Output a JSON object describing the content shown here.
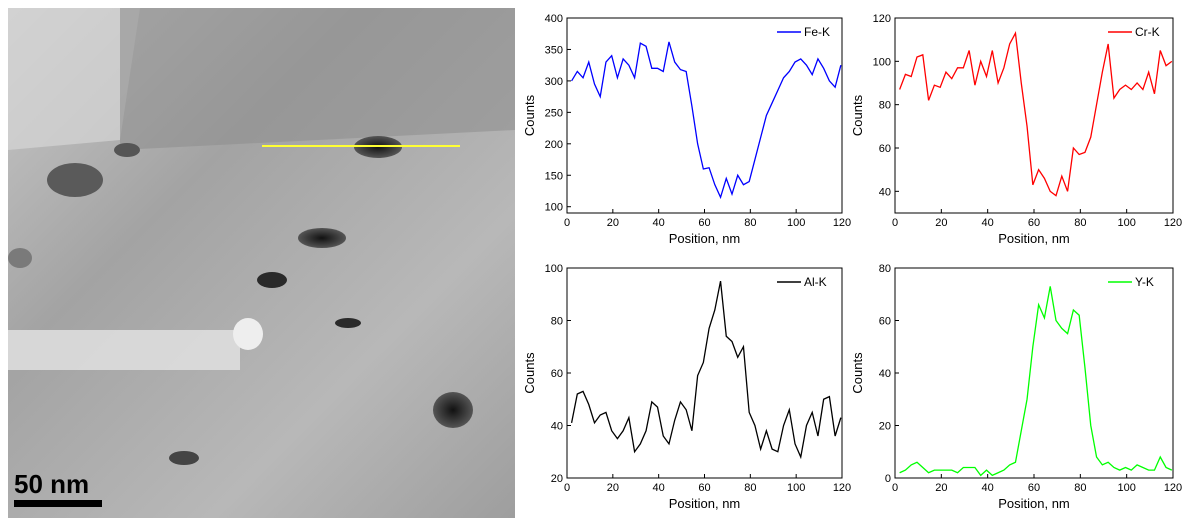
{
  "micrograph": {
    "scale_bar": "50 nm"
  },
  "chart_data": [
    {
      "type": "line",
      "xlabel": "Position, nm",
      "ylabel": "Counts",
      "xlim": [
        0,
        120
      ],
      "xticks": [
        0,
        20,
        40,
        60,
        80,
        100,
        120
      ],
      "ylim": [
        90,
        400
      ],
      "yticks": [
        100,
        150,
        200,
        250,
        300,
        350,
        400
      ],
      "legend": "upper right",
      "x": [
        2,
        4.5,
        7,
        9.5,
        12,
        14.5,
        17,
        19.5,
        22,
        24.5,
        27,
        29.5,
        32,
        34.5,
        37,
        39.5,
        42,
        44.5,
        47,
        49.5,
        52,
        54.5,
        57,
        59.5,
        62,
        64.5,
        67,
        69.5,
        72,
        74.5,
        77,
        79.5,
        82,
        84.5,
        87,
        89.5,
        92,
        94.5,
        97,
        99.5,
        102,
        104.5,
        107,
        109.5,
        112,
        114.5,
        117,
        119.5
      ],
      "series": [
        {
          "name": "Fe-K",
          "color": "#0000ff",
          "values": [
            300,
            315,
            305,
            330,
            295,
            275,
            330,
            340,
            305,
            335,
            325,
            305,
            360,
            355,
            320,
            320,
            315,
            362,
            330,
            318,
            315,
            260,
            200,
            160,
            162,
            135,
            115,
            145,
            120,
            150,
            135,
            140,
            175,
            210,
            245,
            265,
            285,
            305,
            315,
            330,
            335,
            325,
            310,
            335,
            320,
            300,
            290,
            325
          ]
        }
      ]
    },
    {
      "type": "line",
      "xlabel": "Position, nm",
      "ylabel": "Counts",
      "xlim": [
        0,
        120
      ],
      "xticks": [
        0,
        20,
        40,
        60,
        80,
        100,
        120
      ],
      "ylim": [
        30,
        120
      ],
      "yticks": [
        40,
        60,
        80,
        100,
        120
      ],
      "legend": "upper right",
      "x": [
        2,
        4.5,
        7,
        9.5,
        12,
        14.5,
        17,
        19.5,
        22,
        24.5,
        27,
        29.5,
        32,
        34.5,
        37,
        39.5,
        42,
        44.5,
        47,
        49.5,
        52,
        54.5,
        57,
        59.5,
        62,
        64.5,
        67,
        69.5,
        72,
        74.5,
        77,
        79.5,
        82,
        84.5,
        87,
        89.5,
        92,
        94.5,
        97,
        99.5,
        102,
        104.5,
        107,
        109.5,
        112,
        114.5,
        117,
        119.5
      ],
      "series": [
        {
          "name": "Cr-K",
          "color": "#ff0000",
          "values": [
            87,
            94,
            93,
            102,
            103,
            82,
            89,
            88,
            95,
            92,
            97,
            97,
            105,
            89,
            100,
            93,
            105,
            90,
            97,
            108,
            113,
            90,
            70,
            43,
            50,
            46,
            40,
            38,
            47,
            40,
            60,
            57,
            58,
            65,
            80,
            95,
            108,
            83,
            87,
            89,
            87,
            90,
            87,
            95,
            85,
            105,
            98,
            100
          ]
        }
      ]
    },
    {
      "type": "line",
      "xlabel": "Position, nm",
      "ylabel": "Counts",
      "xlim": [
        0,
        120
      ],
      "xticks": [
        0,
        20,
        40,
        60,
        80,
        100,
        120
      ],
      "ylim": [
        20,
        100
      ],
      "yticks": [
        20,
        40,
        60,
        80,
        100
      ],
      "legend": "upper right",
      "x": [
        2,
        4.5,
        7,
        9.5,
        12,
        14.5,
        17,
        19.5,
        22,
        24.5,
        27,
        29.5,
        32,
        34.5,
        37,
        39.5,
        42,
        44.5,
        47,
        49.5,
        52,
        54.5,
        57,
        59.5,
        62,
        64.5,
        67,
        69.5,
        72,
        74.5,
        77,
        79.5,
        82,
        84.5,
        87,
        89.5,
        92,
        94.5,
        97,
        99.5,
        102,
        104.5,
        107,
        109.5,
        112,
        114.5,
        117,
        119.5
      ],
      "series": [
        {
          "name": "Al-K",
          "color": "#000000",
          "values": [
            41,
            52,
            53,
            48,
            41,
            44,
            45,
            38,
            35,
            38,
            43,
            30,
            33,
            38,
            49,
            47,
            36,
            33,
            42,
            49,
            46,
            38,
            59,
            64,
            77,
            84,
            95,
            74,
            72,
            66,
            70,
            45,
            40,
            31,
            38,
            31,
            30,
            40,
            46,
            33,
            28,
            40,
            45,
            36,
            50,
            51,
            36,
            43
          ]
        }
      ]
    },
    {
      "type": "line",
      "xlabel": "Position, nm",
      "ylabel": "Counts",
      "xlim": [
        0,
        120
      ],
      "xticks": [
        0,
        20,
        40,
        60,
        80,
        100,
        120
      ],
      "ylim": [
        0,
        80
      ],
      "yticks": [
        0,
        20,
        40,
        60,
        80
      ],
      "legend": "upper right",
      "x": [
        2,
        4.5,
        7,
        9.5,
        12,
        14.5,
        17,
        19.5,
        22,
        24.5,
        27,
        29.5,
        32,
        34.5,
        37,
        39.5,
        42,
        44.5,
        47,
        49.5,
        52,
        54.5,
        57,
        59.5,
        62,
        64.5,
        67,
        69.5,
        72,
        74.5,
        77,
        79.5,
        82,
        84.5,
        87,
        89.5,
        92,
        94.5,
        97,
        99.5,
        102,
        104.5,
        107,
        109.5,
        112,
        114.5,
        117,
        119.5
      ],
      "series": [
        {
          "name": "Y-K",
          "color": "#00ff00",
          "values": [
            2,
            3,
            5,
            6,
            4,
            2,
            3,
            3,
            3,
            3,
            2,
            4,
            4,
            4,
            1,
            3,
            1,
            2,
            3,
            5,
            6,
            18,
            30,
            50,
            66,
            61,
            73,
            60,
            57,
            55,
            64,
            62,
            42,
            20,
            8,
            5,
            6,
            4,
            3,
            4,
            3,
            5,
            4,
            3,
            3,
            8,
            4,
            3
          ]
        }
      ]
    }
  ]
}
